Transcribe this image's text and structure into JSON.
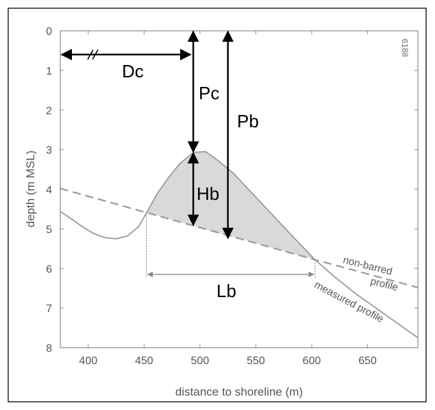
{
  "figure": {
    "id_label": "6188",
    "xlabel": "distance to shoreline (m)",
    "ylabel": "depth (m MSL)",
    "parameters": {
      "Dc": "Dc",
      "Pc": "Pc",
      "Pb": "Pb",
      "Hb": "Hb",
      "Lb": "Lb"
    },
    "profile_labels": {
      "non_barred_line1": "non-barred",
      "non_barred_line2": "profile",
      "measured": "measured profile"
    }
  },
  "chart_data": {
    "type": "line",
    "xlabel": "distance to shoreline (m)",
    "ylabel": "depth (m MSL)",
    "xlim": [
      375,
      695
    ],
    "ylim": [
      0,
      8
    ],
    "y_inverted": true,
    "x_ticks": [
      400,
      450,
      500,
      550,
      600,
      650
    ],
    "y_ticks": [
      0,
      1,
      2,
      3,
      4,
      5,
      6,
      7,
      8
    ],
    "series": [
      {
        "name": "measured profile",
        "style": "solid",
        "color": "#9a9a9a",
        "points": [
          [
            375,
            4.56
          ],
          [
            385,
            4.75
          ],
          [
            395,
            4.95
          ],
          [
            405,
            5.12
          ],
          [
            415,
            5.22
          ],
          [
            425,
            5.25
          ],
          [
            435,
            5.18
          ],
          [
            445,
            4.95
          ],
          [
            452,
            4.6
          ],
          [
            462,
            4.1
          ],
          [
            472,
            3.7
          ],
          [
            482,
            3.35
          ],
          [
            494,
            3.07
          ],
          [
            505,
            3.05
          ],
          [
            515,
            3.25
          ],
          [
            530,
            3.6
          ],
          [
            545,
            4.05
          ],
          [
            560,
            4.5
          ],
          [
            575,
            4.95
          ],
          [
            590,
            5.4
          ],
          [
            603,
            5.78
          ],
          [
            620,
            6.2
          ],
          [
            640,
            6.65
          ],
          [
            660,
            7.05
          ],
          [
            680,
            7.45
          ],
          [
            695,
            7.75
          ]
        ]
      },
      {
        "name": "non-barred profile",
        "style": "dashed",
        "color": "#9a9a9a",
        "points": [
          [
            375,
            3.98
          ],
          [
            603,
            5.78
          ],
          [
            695,
            6.48
          ]
        ]
      }
    ],
    "annotations": {
      "Dc": {
        "from_x": 375,
        "to_x": 494,
        "depth": 0.6
      },
      "Pc": {
        "x": 494,
        "from_depth": 0,
        "to_depth": 3.07
      },
      "Pb": {
        "x": 525,
        "from_depth": 0,
        "to_depth": 5.25
      },
      "Hb": {
        "x": 494,
        "from_depth": 3.07,
        "to_depth": 4.92
      },
      "Lb": {
        "from_x": 452,
        "to_x": 603,
        "depth": 6.15
      }
    }
  }
}
